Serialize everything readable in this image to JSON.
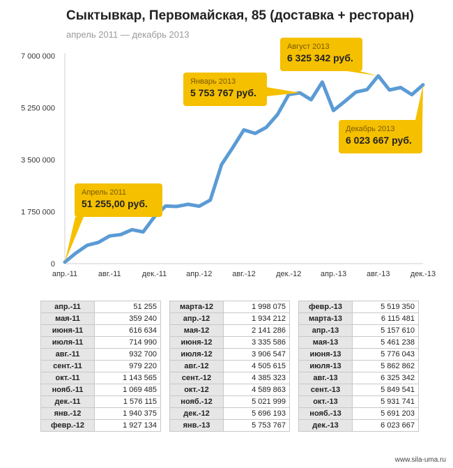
{
  "title": "Сыктывкар, Первомайская, 85 (доставка + ресторан)",
  "subtitle": "апрель 2011 — декабрь 2013",
  "chart_data": {
    "type": "line",
    "x": [
      "апр.-11",
      "мая-11",
      "июня-11",
      "июля-11",
      "авг.-11",
      "сент.-11",
      "окт.-11",
      "нояб.-11",
      "дек.-11",
      "янв.-12",
      "февр.-12",
      "марта-12",
      "апр.-12",
      "мая-12",
      "июня-12",
      "июля-12",
      "авг.-12",
      "сент.-12",
      "окт.-12",
      "нояб.-12",
      "дек.-12",
      "янв.-13",
      "февр.-13",
      "марта-13",
      "апр.-13",
      "мая-13",
      "июня-13",
      "июля-13",
      "авг.-13",
      "сент.-13",
      "окт.-13",
      "нояб.-13",
      "дек.-13"
    ],
    "values": [
      51255,
      359240,
      616634,
      714990,
      932700,
      979220,
      1143565,
      1069485,
      1576115,
      1940375,
      1927134,
      1998075,
      1934212,
      2141286,
      3335586,
      3906547,
      4505615,
      4385323,
      4589863,
      5021999,
      5696193,
      5753767,
      5519350,
      6115481,
      5157610,
      5461238,
      5776043,
      5862862,
      6325342,
      5849541,
      5931741,
      5691203,
      6023667
    ],
    "x_tick_labels": [
      "апр.-11",
      "авг.-11",
      "дек.-11",
      "апр.-12",
      "авг.-12",
      "дек.-12",
      "апр.-13",
      "авг.-13",
      "дек.-13"
    ],
    "y_tick_labels": [
      "0",
      "1 750 000",
      "3 500 000",
      "5 250 000",
      "7 000 000"
    ],
    "y_ticks": [
      0,
      1750000,
      3500000,
      5250000,
      7000000
    ],
    "ylim": [
      0,
      7000000
    ],
    "grid": false,
    "line_color": "#5b9bd5",
    "callout_color": "#f5c000"
  },
  "callouts": [
    {
      "label": "Апрель 2011",
      "value": "51 255,00 руб.",
      "index": 0
    },
    {
      "label": "Январь 2013",
      "value": "5 753 767 руб.",
      "index": 21
    },
    {
      "label": "Август 2013",
      "value": "6 325 342 руб.",
      "index": 28
    },
    {
      "label": "Декабрь 2013",
      "value": "6 023 667 руб.",
      "index": 32
    }
  ],
  "table": {
    "col1": [
      [
        "апр.-11",
        "51 255"
      ],
      [
        "мая-11",
        "359 240"
      ],
      [
        "июня-11",
        "616 634"
      ],
      [
        "июля-11",
        "714 990"
      ],
      [
        "авг.-11",
        "932 700"
      ],
      [
        "сент.-11",
        "979 220"
      ],
      [
        "окт.-11",
        "1 143 565"
      ],
      [
        "нояб.-11",
        "1 069 485"
      ],
      [
        "дек.-11",
        "1 576 115"
      ],
      [
        "янв.-12",
        "1 940 375"
      ],
      [
        "февр.-12",
        "1 927 134"
      ]
    ],
    "col2": [
      [
        "марта-12",
        "1 998 075"
      ],
      [
        "апр.-12",
        "1 934 212"
      ],
      [
        "мая-12",
        "2 141 286"
      ],
      [
        "июня-12",
        "3 335 586"
      ],
      [
        "июля-12",
        "3 906 547"
      ],
      [
        "авг.-12",
        "4 505 615"
      ],
      [
        "сент.-12",
        "4 385 323"
      ],
      [
        "окт.-12",
        "4 589 863"
      ],
      [
        "нояб.-12",
        "5 021 999"
      ],
      [
        "дек.-12",
        "5 696 193"
      ],
      [
        "янв.-13",
        "5 753 767"
      ]
    ],
    "col3": [
      [
        "февр.-13",
        "5 519 350"
      ],
      [
        "марта-13",
        "6 115 481"
      ],
      [
        "апр.-13",
        "5 157 610"
      ],
      [
        "мая-13",
        "5 461 238"
      ],
      [
        "июня-13",
        "5 776 043"
      ],
      [
        "июля-13",
        "5 862 862"
      ],
      [
        "авг.-13",
        "6 325 342"
      ],
      [
        "сент.-13",
        "5 849 541"
      ],
      [
        "окт.-13",
        "5 931 741"
      ],
      [
        "нояб.-13",
        "5 691 203"
      ],
      [
        "дек.-13",
        "6 023 667"
      ]
    ]
  },
  "site": "www.sila-uma.ru"
}
